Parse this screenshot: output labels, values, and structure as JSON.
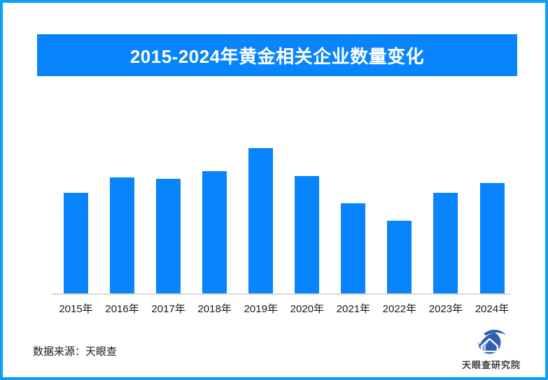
{
  "banner": {
    "title": "2015-2024年黄金相关企业数量变化"
  },
  "chart_data": {
    "type": "bar",
    "title": "2015-2024年黄金相关企业数量变化",
    "categories": [
      "2015年",
      "2016年",
      "2017年",
      "2018年",
      "2019年",
      "2020年",
      "2021年",
      "2022年",
      "2023年",
      "2024年"
    ],
    "values": [
      69,
      80,
      79,
      84,
      100,
      81,
      62,
      50,
      69,
      76
    ],
    "value_scale_note": "no numeric axis, gridlines or data labels are visible; values are bar heights as percent of the tallest bar (2019 = 100)",
    "xlabel": "",
    "ylabel": "",
    "grid": false,
    "legend": false,
    "y_axis_visible": false,
    "bar_color": "#0884FC",
    "baseline_color": "#D9D9D9"
  },
  "footer": {
    "source_label": "数据来源：天眼查",
    "brand_name": "天眼查研究院"
  },
  "colors": {
    "frame_border": "#0A9FF8",
    "banner_bg": "#0884FC",
    "banner_text": "#FFFFFF",
    "bar": "#0884FC",
    "axis_line": "#D9D9D9",
    "axis_label": "#1A1A1A",
    "source_text": "#1A1A1A",
    "logo_blue": "#2E5FB0"
  }
}
